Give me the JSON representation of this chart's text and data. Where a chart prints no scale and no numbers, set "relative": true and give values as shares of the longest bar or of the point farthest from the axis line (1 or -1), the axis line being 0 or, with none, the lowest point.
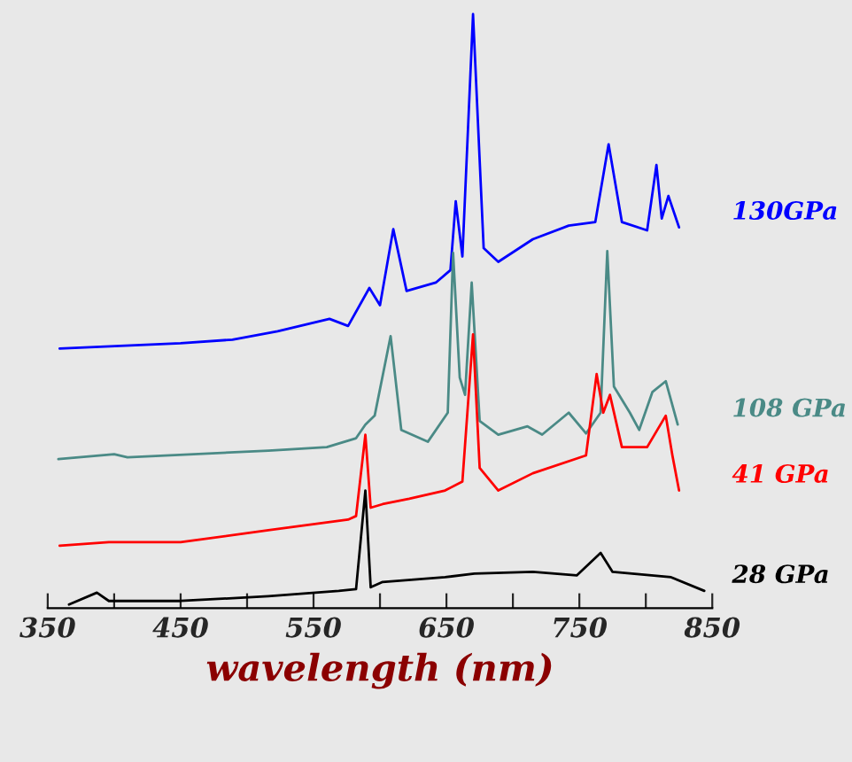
{
  "chart_data": {
    "type": "line",
    "relative": true,
    "xlabel": "wavelength (nm)",
    "xlim": [
      350,
      850
    ],
    "xticks": [
      350,
      {
        "value": 400,
        "label": null
      },
      450,
      {
        "value": 500,
        "label": null
      },
      550,
      {
        "value": 600,
        "label": null
      },
      650,
      {
        "value": 700,
        "label": null
      },
      750,
      {
        "value": 800,
        "label": null
      },
      850
    ],
    "grid": false,
    "legend": false,
    "marker": "none",
    "line_style": "solid",
    "series": [
      {
        "name": "130GPa",
        "color": "#0000ff",
        "x": [
          359,
          450,
          489,
          523,
          562,
          576,
          592,
          600,
          610,
          620,
          642,
          653,
          657,
          662,
          670,
          678,
          689,
          715,
          742,
          762,
          772,
          782,
          801,
          808,
          812,
          817,
          825
        ],
        "values": [
          0.437,
          0.446,
          0.452,
          0.466,
          0.487,
          0.475,
          0.539,
          0.51,
          0.638,
          0.534,
          0.548,
          0.569,
          0.685,
          0.592,
          1,
          0.606,
          0.583,
          0.621,
          0.644,
          0.65,
          0.781,
          0.65,
          0.636,
          0.746,
          0.656,
          0.694,
          0.641
        ]
      },
      {
        "name": "108 GPa",
        "color": "#4a8a86",
        "x": [
          358,
          400,
          410,
          516,
          560,
          582,
          589,
          596,
          608,
          616,
          636,
          651,
          655,
          660,
          664,
          669,
          675,
          689,
          711,
          722,
          742,
          755,
          766,
          771,
          776,
          788,
          795,
          805,
          815,
          824
        ],
        "values": [
          0.251,
          0.259,
          0.254,
          0.265,
          0.271,
          0.286,
          0.309,
          0.324,
          0.458,
          0.3,
          0.28,
          0.329,
          0.598,
          0.388,
          0.359,
          0.548,
          0.315,
          0.292,
          0.306,
          0.292,
          0.329,
          0.294,
          0.329,
          0.601,
          0.373,
          0.329,
          0.3,
          0.364,
          0.382,
          0.309
        ]
      },
      {
        "name": "41 GPa",
        "color": "#ff0000",
        "x": [
          359,
          396,
          450,
          516,
          576,
          582,
          589,
          593,
          602,
          622,
          649,
          662,
          670,
          675,
          689,
          715,
          755,
          763,
          768,
          773,
          782,
          801,
          815,
          820,
          825
        ],
        "values": [
          0.105,
          0.111,
          0.111,
          0.131,
          0.149,
          0.155,
          0.292,
          0.169,
          0.175,
          0.184,
          0.198,
          0.213,
          0.461,
          0.236,
          0.198,
          0.227,
          0.257,
          0.394,
          0.329,
          0.359,
          0.271,
          0.271,
          0.324,
          0.257,
          0.198
        ]
      },
      {
        "name": "28 GPa",
        "color": "#000000",
        "x": [
          366,
          387,
          396,
          450,
          516,
          569,
          582,
          589,
          593,
          602,
          649,
          671,
          715,
          748,
          766,
          775,
          819,
          844
        ],
        "values": [
          0.006,
          0.026,
          0.012,
          0.012,
          0.02,
          0.029,
          0.032,
          0.198,
          0.035,
          0.044,
          0.052,
          0.058,
          0.061,
          0.055,
          0.093,
          0.061,
          0.052,
          0.029
        ]
      }
    ]
  }
}
